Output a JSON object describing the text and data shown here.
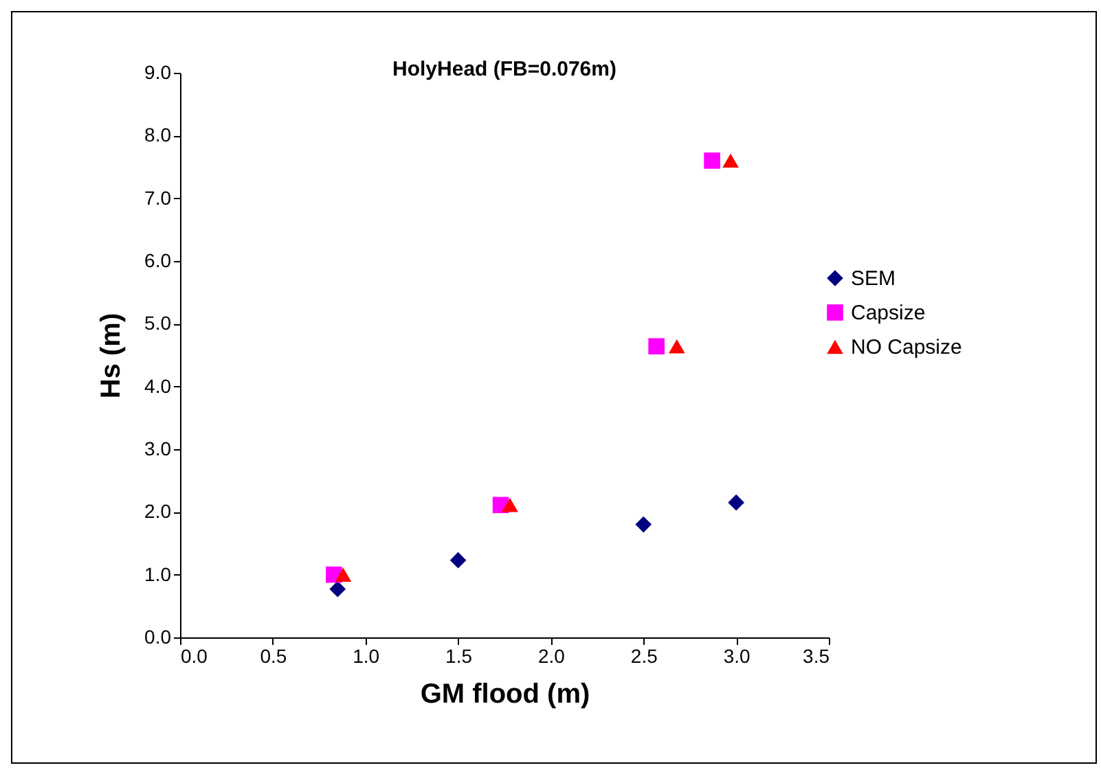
{
  "chart_data": {
    "type": "scatter",
    "title": "HolyHead (FB=0.076m)",
    "xlabel": "GM flood (m)",
    "ylabel": "Hs (m)",
    "xlim": [
      0,
      3.5
    ],
    "xticks": [
      {
        "value": 0,
        "label": "0.0"
      },
      0.5,
      {
        "value": 1,
        "label": "1.0"
      },
      1.5,
      {
        "value": 2,
        "label": "2.0"
      },
      2.5,
      {
        "value": 3,
        "label": "3.0"
      },
      3.5
    ],
    "ylim": [
      0,
      9
    ],
    "yticks": [
      {
        "value": 0,
        "label": "0.0"
      },
      {
        "value": 1,
        "label": "1.0"
      },
      {
        "value": 2,
        "label": "2.0"
      },
      {
        "value": 3,
        "label": "3.0"
      },
      {
        "value": 4,
        "label": "4.0"
      },
      {
        "value": 5,
        "label": "5.0"
      },
      {
        "value": 6,
        "label": "6.0"
      },
      {
        "value": 7,
        "label": "7.0"
      },
      {
        "value": 8,
        "label": "8.0"
      },
      {
        "value": 9,
        "label": "9.0"
      }
    ],
    "grid": false,
    "legend": "right",
    "series": [
      {
        "name": "SEM",
        "color": "#000080",
        "marker": "diamond",
        "x": [
          0.85,
          1.5,
          2.5,
          3.0
        ],
        "values": [
          0.77,
          1.23,
          1.8,
          2.15
        ]
      },
      {
        "name": "Capsize",
        "color": "#ff00ff",
        "marker": "square",
        "x": [
          0.83,
          1.73,
          2.57,
          2.87
        ],
        "values": [
          1.0,
          2.11,
          4.64,
          7.6
        ]
      },
      {
        "name": "NO Capsize",
        "color": "#ff0000",
        "marker": "triangle",
        "x": [
          0.88,
          1.78,
          2.68,
          2.97
        ],
        "values": [
          1.0,
          2.11,
          4.64,
          7.6
        ]
      }
    ]
  }
}
